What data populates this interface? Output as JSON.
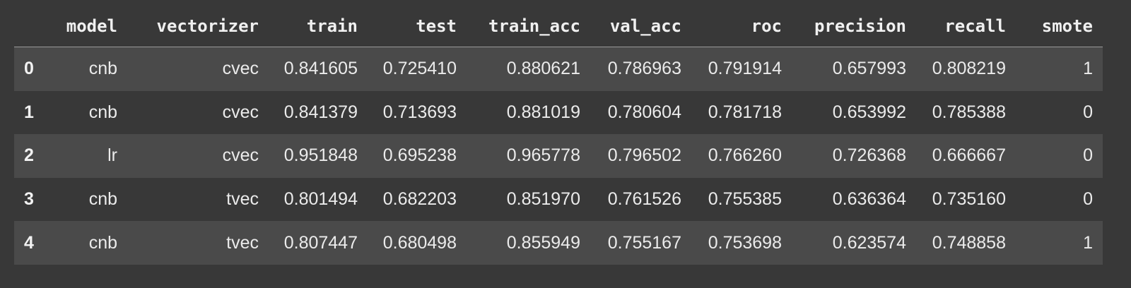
{
  "table": {
    "columns": [
      "model",
      "vectorizer",
      "train",
      "test",
      "train_acc",
      "val_acc",
      "roc",
      "precision",
      "recall",
      "smote"
    ],
    "rows": [
      {
        "index": "0",
        "cells": [
          "cnb",
          "cvec",
          "0.841605",
          "0.725410",
          "0.880621",
          "0.786963",
          "0.791914",
          "0.657993",
          "0.808219",
          "1"
        ]
      },
      {
        "index": "1",
        "cells": [
          "cnb",
          "cvec",
          "0.841379",
          "0.713693",
          "0.881019",
          "0.780604",
          "0.781718",
          "0.653992",
          "0.785388",
          "0"
        ]
      },
      {
        "index": "2",
        "cells": [
          "lr",
          "cvec",
          "0.951848",
          "0.695238",
          "0.965778",
          "0.796502",
          "0.766260",
          "0.726368",
          "0.666667",
          "0"
        ]
      },
      {
        "index": "3",
        "cells": [
          "cnb",
          "tvec",
          "0.801494",
          "0.682203",
          "0.851970",
          "0.761526",
          "0.755385",
          "0.636364",
          "0.735160",
          "0"
        ]
      },
      {
        "index": "4",
        "cells": [
          "cnb",
          "tvec",
          "0.807447",
          "0.680498",
          "0.855949",
          "0.755167",
          "0.753698",
          "0.623574",
          "0.748858",
          "1"
        ]
      }
    ]
  },
  "colors": {
    "background": "#383838",
    "row_stripe": "#4a4a4a",
    "text": "#ebebeb",
    "header_rule": "#9a9a9a"
  }
}
